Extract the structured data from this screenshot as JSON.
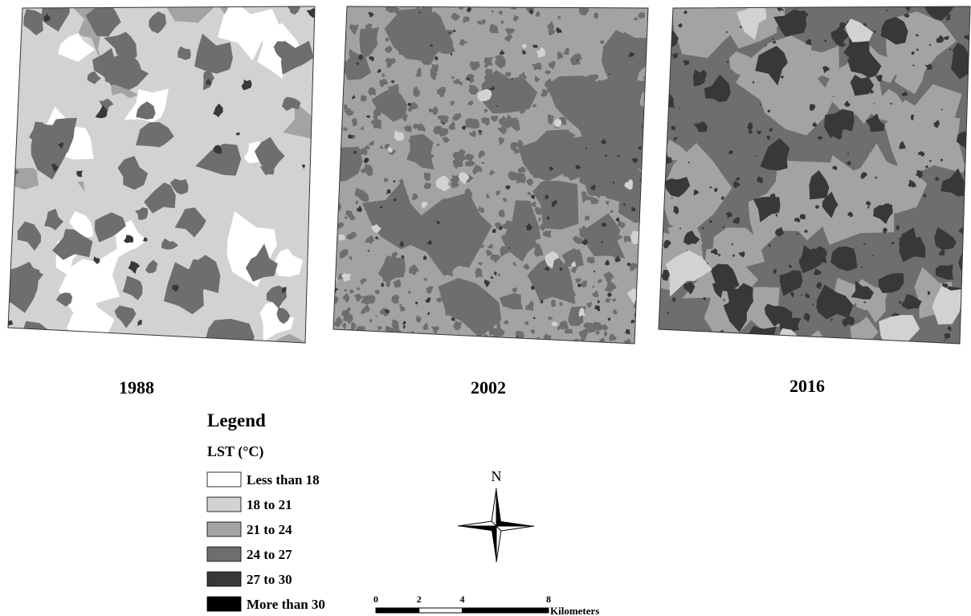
{
  "maps": [
    {
      "year": "1988"
    },
    {
      "year": "2002"
    },
    {
      "year": "2016"
    }
  ],
  "legend": {
    "title": "Legend",
    "subtitle": "LST (°C)",
    "items": [
      {
        "label": "Less than 18",
        "color": "#ffffff"
      },
      {
        "label": "18 to 21",
        "color": "#d2d2d2"
      },
      {
        "label": "21 to 24",
        "color": "#a3a3a3"
      },
      {
        "label": "24 to 27",
        "color": "#6e6e6e"
      },
      {
        "label": "27 to 30",
        "color": "#383838"
      },
      {
        "label": "More than 30",
        "color": "#000000"
      }
    ]
  },
  "north_arrow": {
    "label": "N"
  },
  "scale_bar": {
    "ticks": [
      0,
      2,
      4,
      8
    ],
    "unit": "Kilometers"
  }
}
